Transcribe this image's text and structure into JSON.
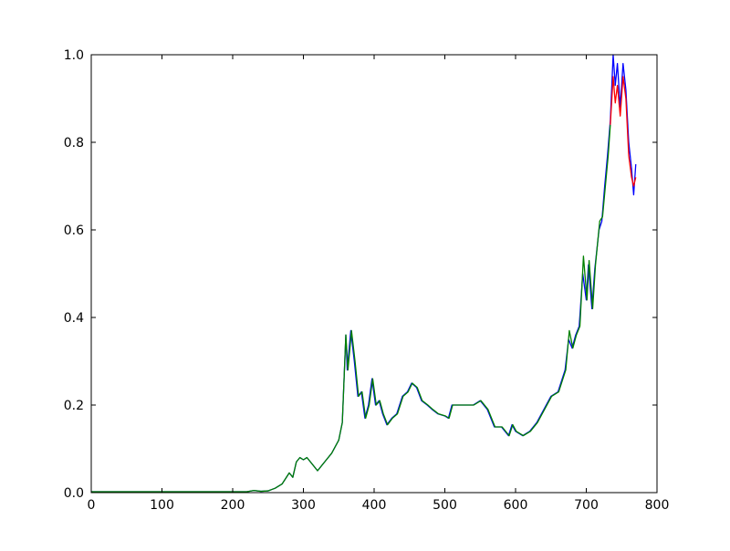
{
  "chart_data": {
    "type": "line",
    "series": [
      {
        "color": "#0000ff",
        "x": [
          0,
          220,
          230,
          240,
          250,
          260,
          270,
          280,
          285,
          290,
          295,
          300,
          305,
          310,
          320,
          330,
          340,
          350,
          355,
          360,
          362,
          367,
          372,
          377,
          382,
          387,
          392,
          397,
          402,
          407,
          412,
          418,
          425,
          432,
          440,
          447,
          453,
          460,
          467,
          475,
          482,
          490,
          500,
          505,
          510,
          520,
          530,
          540,
          550,
          560,
          570,
          580,
          590,
          595,
          600,
          610,
          620,
          630,
          640,
          650,
          660,
          670,
          675,
          680,
          685,
          690,
          695,
          700,
          703,
          708,
          712,
          718,
          722,
          726,
          730,
          734,
          738,
          741,
          744,
          748,
          752,
          756,
          760,
          764,
          767,
          770
        ],
        "values": [
          0.002,
          0.002,
          0.005,
          0.003,
          0.004,
          0.01,
          0.02,
          0.045,
          0.035,
          0.07,
          0.08,
          0.075,
          0.08,
          0.07,
          0.05,
          0.07,
          0.09,
          0.12,
          0.16,
          0.36,
          0.28,
          0.37,
          0.3,
          0.22,
          0.23,
          0.17,
          0.2,
          0.26,
          0.2,
          0.21,
          0.18,
          0.155,
          0.17,
          0.18,
          0.22,
          0.23,
          0.25,
          0.24,
          0.21,
          0.2,
          0.19,
          0.18,
          0.175,
          0.17,
          0.2,
          0.2,
          0.2,
          0.2,
          0.21,
          0.19,
          0.15,
          0.15,
          0.13,
          0.155,
          0.14,
          0.13,
          0.14,
          0.16,
          0.19,
          0.22,
          0.23,
          0.28,
          0.35,
          0.33,
          0.36,
          0.38,
          0.5,
          0.44,
          0.52,
          0.42,
          0.51,
          0.6,
          0.62,
          0.7,
          0.77,
          0.85,
          1.0,
          0.93,
          0.98,
          0.88,
          0.98,
          0.92,
          0.8,
          0.74,
          0.68,
          0.75
        ]
      },
      {
        "color": "#008000",
        "x": [
          0,
          220,
          230,
          240,
          250,
          260,
          270,
          280,
          285,
          290,
          295,
          300,
          305,
          310,
          320,
          330,
          340,
          350,
          355,
          360,
          363,
          368,
          373,
          378,
          383,
          388,
          393,
          398,
          403,
          408,
          413,
          419,
          426,
          433,
          441,
          448,
          454,
          461,
          468,
          476,
          483,
          491,
          501,
          506,
          511,
          521,
          531,
          541,
          551,
          561,
          571,
          581,
          591,
          596,
          601,
          611,
          621,
          631,
          641,
          651,
          661,
          671,
          676,
          681,
          686,
          691,
          696,
          701,
          704,
          709,
          713,
          719,
          723,
          727,
          731,
          734
        ],
        "values": [
          0.002,
          0.002,
          0.005,
          0.003,
          0.004,
          0.01,
          0.02,
          0.045,
          0.035,
          0.07,
          0.08,
          0.075,
          0.08,
          0.07,
          0.05,
          0.07,
          0.09,
          0.12,
          0.16,
          0.36,
          0.28,
          0.37,
          0.3,
          0.22,
          0.23,
          0.17,
          0.2,
          0.26,
          0.2,
          0.21,
          0.18,
          0.155,
          0.17,
          0.18,
          0.22,
          0.23,
          0.25,
          0.24,
          0.21,
          0.2,
          0.19,
          0.18,
          0.175,
          0.17,
          0.2,
          0.2,
          0.2,
          0.2,
          0.21,
          0.19,
          0.15,
          0.15,
          0.13,
          0.155,
          0.14,
          0.13,
          0.14,
          0.16,
          0.19,
          0.22,
          0.23,
          0.28,
          0.37,
          0.33,
          0.36,
          0.38,
          0.54,
          0.44,
          0.53,
          0.42,
          0.52,
          0.62,
          0.63,
          0.7,
          0.77,
          0.84
        ]
      },
      {
        "color": "#ff0000",
        "x": [
          734,
          738,
          741,
          744,
          748,
          752,
          756,
          760,
          764,
          767,
          770
        ],
        "values": [
          0.84,
          0.95,
          0.89,
          0.93,
          0.86,
          0.95,
          0.9,
          0.77,
          0.72,
          0.7,
          0.72
        ]
      }
    ],
    "xlim": [
      0,
      800
    ],
    "xticks": [
      0,
      100,
      200,
      300,
      400,
      500,
      600,
      700,
      800
    ],
    "ylim": [
      0,
      1
    ],
    "yticks": [
      {
        "value": 0,
        "label": "0.0"
      },
      0.2,
      0.4,
      0.6,
      0.8,
      {
        "value": 1,
        "label": "1.0"
      }
    ]
  }
}
